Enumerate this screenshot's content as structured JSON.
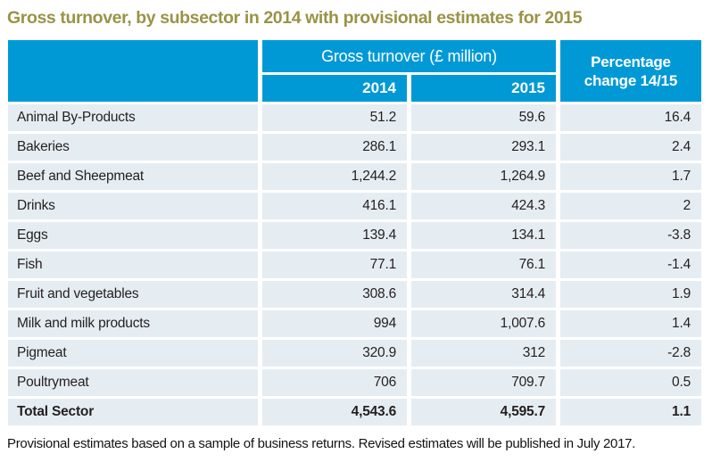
{
  "title": "Gross turnover, by subsector in 2014 with provisional estimates for 2015",
  "table": {
    "group_header": "Gross turnover (£ million)",
    "col_2014": "2014",
    "col_2015": "2015",
    "pct_header_line1": "Percentage",
    "pct_header_line2": "change 14/15",
    "rows": [
      {
        "label": "Animal By-Products",
        "y2014": "51.2",
        "y2015": "59.6",
        "pct": "16.4"
      },
      {
        "label": "Bakeries",
        "y2014": "286.1",
        "y2015": "293.1",
        "pct": "2.4"
      },
      {
        "label": "Beef and Sheepmeat",
        "y2014": "1,244.2",
        "y2015": "1,264.9",
        "pct": "1.7"
      },
      {
        "label": "Drinks",
        "y2014": "416.1",
        "y2015": "424.3",
        "pct": "2"
      },
      {
        "label": "Eggs",
        "y2014": "139.4",
        "y2015": "134.1",
        "pct": "-3.8"
      },
      {
        "label": "Fish",
        "y2014": "77.1",
        "y2015": "76.1",
        "pct": "-1.4"
      },
      {
        "label": "Fruit and vegetables",
        "y2014": "308.6",
        "y2015": "314.4",
        "pct": "1.9"
      },
      {
        "label": "Milk and milk products",
        "y2014": "994",
        "y2015": "1,007.6",
        "pct": "1.4"
      },
      {
        "label": "Pigmeat",
        "y2014": "320.9",
        "y2015": "312",
        "pct": "-2.8"
      },
      {
        "label": "Poultrymeat",
        "y2014": "706",
        "y2015": "709.7",
        "pct": "0.5"
      },
      {
        "label": "Total Sector",
        "y2014": "4,543.6",
        "y2015": "4,595.7",
        "pct": "1.1",
        "total": true
      }
    ]
  },
  "footnote": "Provisional estimates based on a sample of business returns. Revised estimates will be published in July 2017.",
  "colors": {
    "header_blue": "#0099d6",
    "row_background": "#e6edf2",
    "title_color": "#9a9346"
  }
}
